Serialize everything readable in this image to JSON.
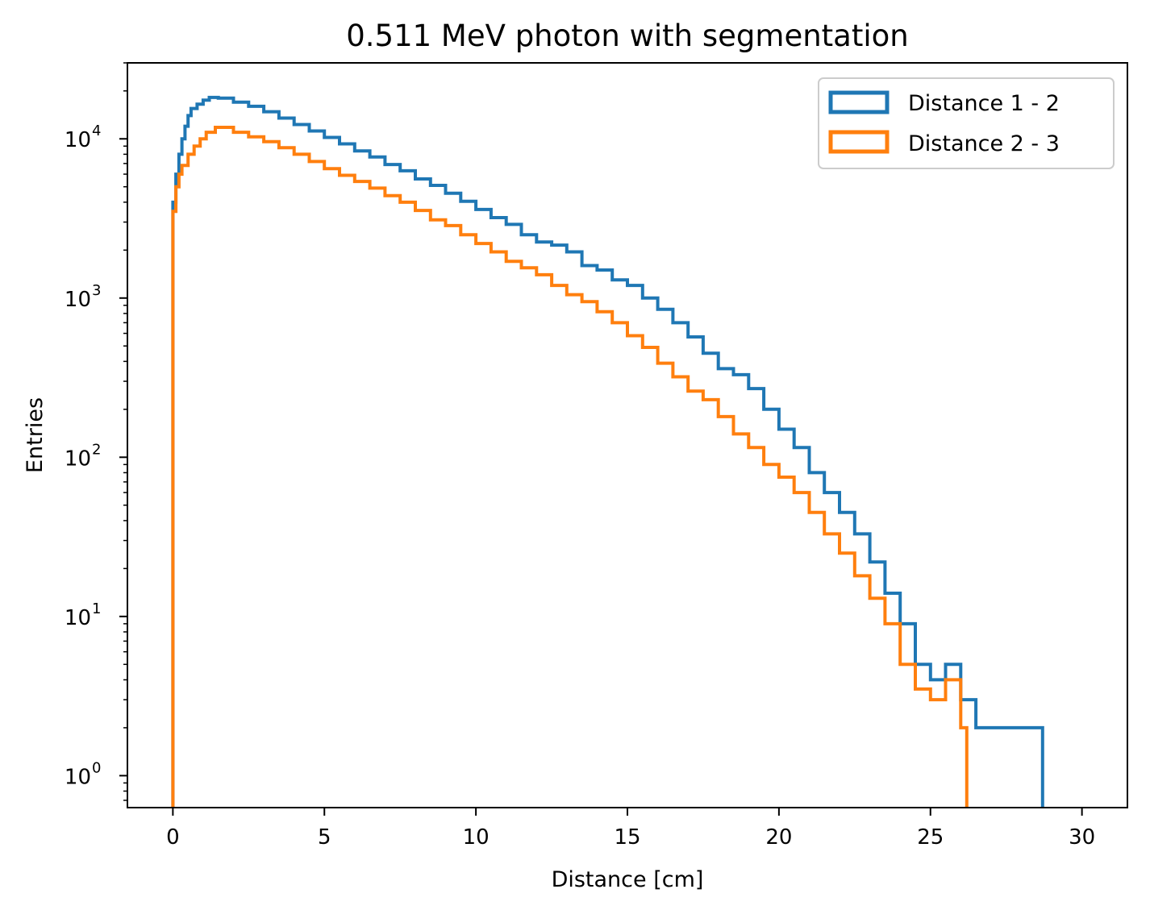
{
  "chart_data": {
    "type": "histogram",
    "title": "0.511 MeV photon with segmentation",
    "xlabel": "Distance [cm]",
    "ylabel": "Entries",
    "xlim": [
      -1.5,
      31.5
    ],
    "ylim": [
      0.63,
      30000
    ],
    "yscale": "log",
    "grid": false,
    "legend_position": "top-right",
    "x_ticks": [
      0,
      5,
      10,
      15,
      20,
      25,
      30
    ],
    "x_tick_labels": [
      "0",
      "5",
      "10",
      "15",
      "20",
      "25",
      "30"
    ],
    "y_ticks": [
      1,
      10,
      100,
      1000,
      10000
    ],
    "y_tick_base": "10",
    "y_tick_exponents": [
      "0",
      "1",
      "2",
      "3",
      "4"
    ],
    "series": [
      {
        "name": "Distance 1 - 2",
        "color": "#1f77b4",
        "points": [
          [
            0,
            4000
          ],
          [
            0.1,
            6000
          ],
          [
            0.2,
            8000
          ],
          [
            0.3,
            10000
          ],
          [
            0.4,
            12000
          ],
          [
            0.5,
            14000
          ],
          [
            0.6,
            15500
          ],
          [
            0.8,
            16500
          ],
          [
            1.0,
            17500
          ],
          [
            1.2,
            18200
          ],
          [
            1.5,
            18000
          ],
          [
            2,
            17000
          ],
          [
            2.5,
            16000
          ],
          [
            3,
            14800
          ],
          [
            3.5,
            13500
          ],
          [
            4,
            12300
          ],
          [
            4.5,
            11200
          ],
          [
            5,
            10200
          ],
          [
            5.5,
            9300
          ],
          [
            6,
            8400
          ],
          [
            6.5,
            7700
          ],
          [
            7,
            6900
          ],
          [
            7.5,
            6300
          ],
          [
            8,
            5600
          ],
          [
            8.5,
            5100
          ],
          [
            9,
            4550
          ],
          [
            9.5,
            4050
          ],
          [
            10,
            3600
          ],
          [
            10.5,
            3200
          ],
          [
            11,
            2900
          ],
          [
            11.5,
            2500
          ],
          [
            12,
            2250
          ],
          [
            12.5,
            2150
          ],
          [
            13,
            1950
          ],
          [
            13.5,
            1600
          ],
          [
            14,
            1500
          ],
          [
            14.5,
            1300
          ],
          [
            15,
            1200
          ],
          [
            15.5,
            1000
          ],
          [
            16,
            850
          ],
          [
            16.5,
            700
          ],
          [
            17,
            570
          ],
          [
            17.5,
            450
          ],
          [
            18,
            360
          ],
          [
            18.5,
            330
          ],
          [
            19,
            270
          ],
          [
            19.5,
            200
          ],
          [
            20,
            150
          ],
          [
            20.5,
            115
          ],
          [
            21,
            80
          ],
          [
            21.5,
            60
          ],
          [
            22,
            45
          ],
          [
            22.5,
            33
          ],
          [
            23,
            22
          ],
          [
            23.5,
            14
          ],
          [
            24,
            9
          ],
          [
            24.5,
            5
          ],
          [
            25,
            4
          ],
          [
            25.5,
            5
          ],
          [
            26,
            3
          ],
          [
            26.5,
            2
          ],
          [
            27,
            2
          ],
          [
            27.5,
            2
          ],
          [
            28,
            2
          ],
          [
            28.5,
            2
          ]
        ]
      },
      {
        "name": "Distance 2 - 3",
        "color": "#ff7f0e",
        "points": [
          [
            0,
            3500
          ],
          [
            0.1,
            5000
          ],
          [
            0.2,
            6000
          ],
          [
            0.3,
            6800
          ],
          [
            0.5,
            8000
          ],
          [
            0.7,
            9000
          ],
          [
            0.9,
            10000
          ],
          [
            1.1,
            11000
          ],
          [
            1.4,
            11800
          ],
          [
            2,
            11000
          ],
          [
            2.5,
            10300
          ],
          [
            3,
            9600
          ],
          [
            3.5,
            8800
          ],
          [
            4,
            8000
          ],
          [
            4.5,
            7200
          ],
          [
            5,
            6500
          ],
          [
            5.5,
            5900
          ],
          [
            6,
            5400
          ],
          [
            6.5,
            4900
          ],
          [
            7,
            4400
          ],
          [
            7.5,
            4000
          ],
          [
            8,
            3550
          ],
          [
            8.5,
            3100
          ],
          [
            9,
            2850
          ],
          [
            9.5,
            2500
          ],
          [
            10,
            2200
          ],
          [
            10.5,
            1950
          ],
          [
            11,
            1700
          ],
          [
            11.5,
            1550
          ],
          [
            12,
            1400
          ],
          [
            12.5,
            1200
          ],
          [
            13,
            1050
          ],
          [
            13.5,
            950
          ],
          [
            14,
            820
          ],
          [
            14.5,
            700
          ],
          [
            15,
            580
          ],
          [
            15.5,
            490
          ],
          [
            16,
            390
          ],
          [
            16.5,
            320
          ],
          [
            17,
            260
          ],
          [
            17.5,
            230
          ],
          [
            18,
            180
          ],
          [
            18.5,
            140
          ],
          [
            19,
            115
          ],
          [
            19.5,
            90
          ],
          [
            20,
            75
          ],
          [
            20.5,
            60
          ],
          [
            21,
            45
          ],
          [
            21.5,
            33
          ],
          [
            22,
            25
          ],
          [
            22.5,
            18
          ],
          [
            23,
            13
          ],
          [
            23.5,
            9
          ],
          [
            24,
            5
          ],
          [
            24.5,
            3.5
          ],
          [
            25,
            3
          ],
          [
            25.5,
            4
          ],
          [
            26,
            2
          ]
        ]
      }
    ]
  }
}
